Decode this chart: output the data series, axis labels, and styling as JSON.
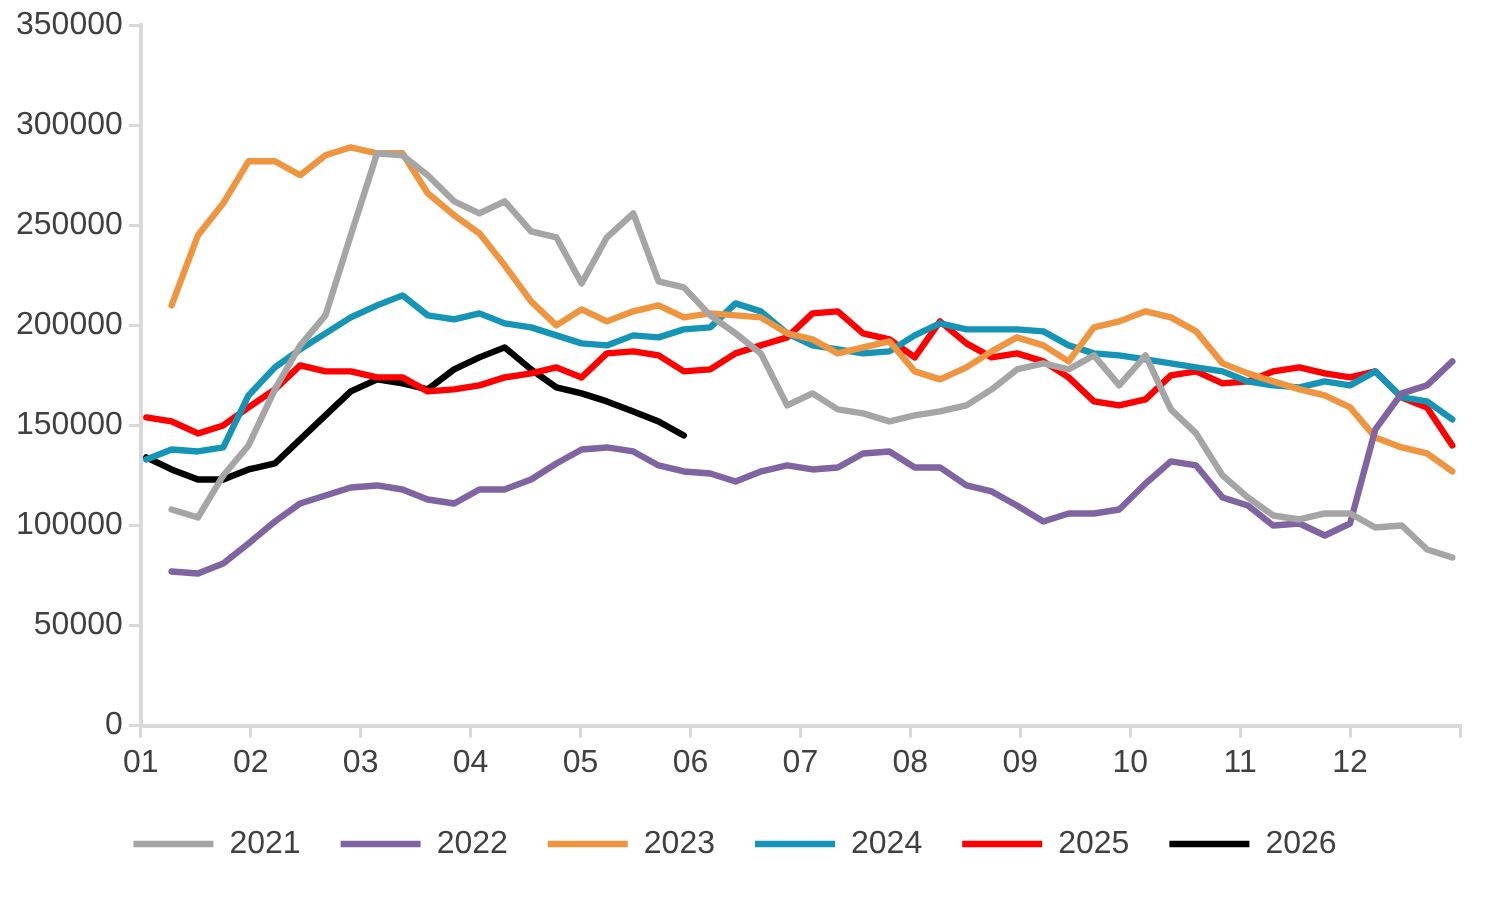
{
  "chart_data": {
    "type": "line",
    "x": [
      1.05,
      1.28,
      1.52,
      1.75,
      1.98,
      2.22,
      2.45,
      2.68,
      2.91,
      3.15,
      3.38,
      3.61,
      3.85,
      4.08,
      4.31,
      4.55,
      4.78,
      5.01,
      5.24,
      5.48,
      5.71,
      5.94,
      6.18,
      6.41,
      6.64,
      6.88,
      7.11,
      7.34,
      7.57,
      7.81,
      8.04,
      8.27,
      8.51,
      8.74,
      8.97,
      9.21,
      9.44,
      9.67,
      9.9,
      10.14,
      10.37,
      10.6,
      10.84,
      11.07,
      11.3,
      11.54,
      11.77,
      12,
      12.23,
      12.47,
      12.7,
      12.93
    ],
    "series": [
      {
        "name": "2021",
        "color": "#a5a5a5",
        "values": [
          null,
          108000,
          104000,
          125000,
          140000,
          168000,
          190000,
          205000,
          245000,
          286000,
          285000,
          275000,
          262000,
          256000,
          262000,
          247000,
          244000,
          221000,
          244000,
          256000,
          222000,
          219000,
          205000,
          196000,
          186000,
          160000,
          166000,
          158000,
          156000,
          152000,
          155000,
          157000,
          160000,
          168000,
          178000,
          181000,
          178000,
          185000,
          170000,
          185000,
          158000,
          146000,
          125000,
          114000,
          105000,
          103000,
          106000,
          106000,
          99000,
          100000,
          88000,
          84000
        ]
      },
      {
        "name": "2022",
        "color": "#8064a2",
        "values": [
          null,
          77000,
          76000,
          81000,
          91000,
          102000,
          111000,
          115000,
          119000,
          120000,
          118000,
          113000,
          111000,
          118000,
          118000,
          123000,
          131000,
          138000,
          139000,
          137000,
          130000,
          127000,
          126000,
          122000,
          127000,
          130000,
          128000,
          129000,
          136000,
          137000,
          129000,
          129000,
          120000,
          117000,
          110000,
          102000,
          106000,
          106000,
          108000,
          121000,
          132000,
          130000,
          114000,
          110000,
          100000,
          101000,
          95000,
          101000,
          148000,
          166000,
          170000,
          182000
        ]
      },
      {
        "name": "2023",
        "color": "#f0953f",
        "values": [
          null,
          210000,
          245000,
          261000,
          282000,
          282000,
          275000,
          285000,
          289000,
          286000,
          286000,
          266000,
          255000,
          246000,
          230000,
          212000,
          200000,
          208000,
          202000,
          207000,
          210000,
          204000,
          206000,
          205000,
          204000,
          196000,
          193000,
          186000,
          189000,
          192000,
          177000,
          173000,
          179000,
          187000,
          194000,
          190000,
          182000,
          199000,
          202000,
          207000,
          204000,
          197000,
          181000,
          176000,
          172000,
          168000,
          165000,
          159000,
          144000,
          139000,
          136000,
          127000
        ]
      },
      {
        "name": "2024",
        "color": "#1595b5",
        "values": [
          133000,
          138000,
          137000,
          139000,
          165000,
          179000,
          188000,
          196000,
          204000,
          210000,
          215000,
          205000,
          203000,
          206000,
          201000,
          199000,
          195000,
          191000,
          190000,
          195000,
          194000,
          198000,
          199000,
          211000,
          207000,
          196000,
          190000,
          188000,
          186000,
          187000,
          195000,
          201000,
          198000,
          198000,
          198000,
          197000,
          190000,
          186000,
          185000,
          183000,
          181000,
          179000,
          177000,
          172000,
          170000,
          169000,
          172000,
          170000,
          177000,
          164000,
          162000,
          153000
        ]
      },
      {
        "name": "2025",
        "color": "#ff0000",
        "values": [
          154000,
          152000,
          146000,
          150000,
          159000,
          168000,
          180000,
          177000,
          177000,
          174000,
          174000,
          167000,
          168000,
          170000,
          174000,
          176000,
          179000,
          174000,
          186000,
          187000,
          185000,
          177000,
          178000,
          186000,
          190000,
          194000,
          206000,
          207000,
          196000,
          193000,
          184000,
          202000,
          191000,
          184000,
          186000,
          182000,
          174000,
          162000,
          160000,
          163000,
          175000,
          177000,
          171000,
          172000,
          177000,
          179000,
          176000,
          174000,
          177000,
          164000,
          159000,
          140000
        ]
      },
      {
        "name": "2026",
        "color": "#000000",
        "values": [
          134000,
          128000,
          123000,
          123000,
          128000,
          131000,
          143000,
          155000,
          167000,
          173000,
          171000,
          168000,
          178000,
          184000,
          189000,
          178000,
          169000,
          166000,
          162000,
          157000,
          152000,
          145000,
          null,
          null,
          null,
          null,
          null,
          null,
          null,
          null,
          null,
          null,
          null,
          null,
          null,
          null,
          null,
          null,
          null,
          null,
          null,
          null,
          null,
          null,
          null,
          null,
          null,
          null,
          null,
          null,
          null,
          null
        ]
      }
    ],
    "xlim": [
      1,
      13
    ],
    "xticks": [
      {
        "value": 1,
        "label": "01"
      },
      {
        "value": 2,
        "label": "02"
      },
      {
        "value": 3,
        "label": "03"
      },
      {
        "value": 4,
        "label": "04"
      },
      {
        "value": 5,
        "label": "05"
      },
      {
        "value": 6,
        "label": "06"
      },
      {
        "value": 7,
        "label": "07"
      },
      {
        "value": 8,
        "label": "08"
      },
      {
        "value": 9,
        "label": "09"
      },
      {
        "value": 10,
        "label": "10"
      },
      {
        "value": 11,
        "label": "11"
      },
      {
        "value": 12,
        "label": "12"
      },
      {
        "value": 13,
        "label": null
      }
    ],
    "ylim": [
      0,
      350000
    ],
    "yticks": [
      0,
      50000,
      100000,
      150000,
      200000,
      250000,
      300000,
      350000
    ],
    "grid": false,
    "legend": "bottom"
  }
}
